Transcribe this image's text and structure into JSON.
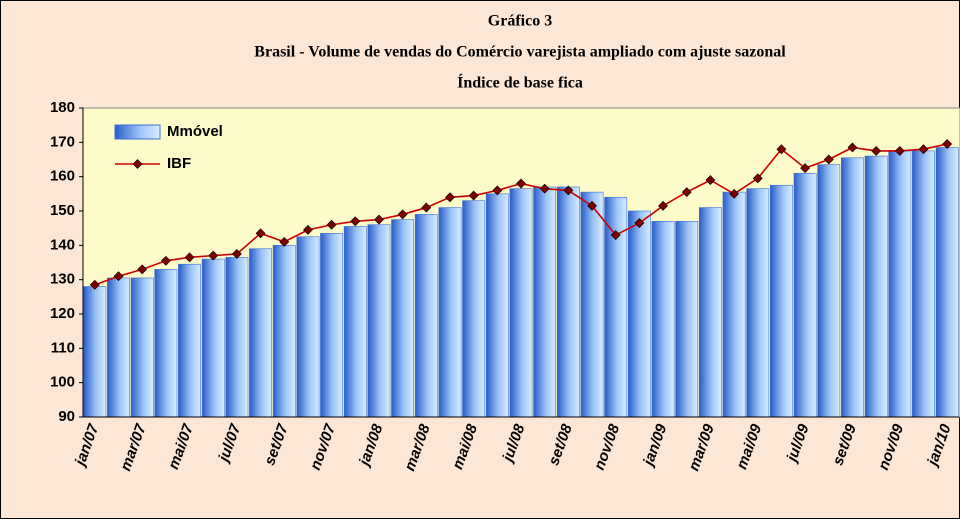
{
  "chart_data": {
    "type": "bar",
    "title": "Gráfico 3",
    "subtitle": "Brasil - Volume de vendas do Comércio varejista ampliado com ajuste sazonal",
    "subtitle2": "Índice de base fica",
    "categories": [
      "jan/07",
      null,
      "mar/07",
      null,
      "mai/07",
      null,
      "jul/07",
      null,
      "set/07",
      null,
      "nov/07",
      null,
      "jan/08",
      null,
      "mar/08",
      null,
      "mai/08",
      null,
      "jul/08",
      null,
      "set/08",
      null,
      "nov/08",
      null,
      "jan/09",
      null,
      "mar/09",
      null,
      "mai/09",
      null,
      "jul/09",
      null,
      "set/09",
      null,
      "nov/09",
      null,
      "jan/10"
    ],
    "series": [
      {
        "name": "Mmóvel",
        "color": "#3a6fd8",
        "type": "bar",
        "values": [
          128,
          130.5,
          130.5,
          133,
          134.5,
          136,
          136.5,
          139,
          140,
          142.5,
          143.5,
          145.5,
          146,
          147.5,
          149,
          151,
          153,
          155,
          156.5,
          157,
          157,
          155.5,
          154,
          150,
          147,
          147,
          151,
          155.5,
          156.5,
          157.5,
          161,
          163.5,
          165.5,
          166,
          167.5,
          167.5,
          168.5
        ]
      },
      {
        "name": "IBF",
        "color": "#cc0000",
        "type": "line",
        "values": [
          128.5,
          131,
          133,
          135.5,
          136.5,
          137,
          137.5,
          143.5,
          141,
          144.5,
          146,
          147,
          147.5,
          149,
          151,
          154,
          154.5,
          156,
          158,
          156.5,
          156,
          151.5,
          143,
          146.5,
          151.5,
          155.5,
          159,
          155,
          159.5,
          168,
          162.5,
          165,
          168.5,
          167.5,
          167.5,
          168,
          169.5
        ]
      }
    ],
    "ylim": [
      90,
      180
    ],
    "yticks": [
      90,
      100,
      110,
      120,
      130,
      140,
      150,
      160,
      170,
      180
    ],
    "legend": "upper left"
  }
}
